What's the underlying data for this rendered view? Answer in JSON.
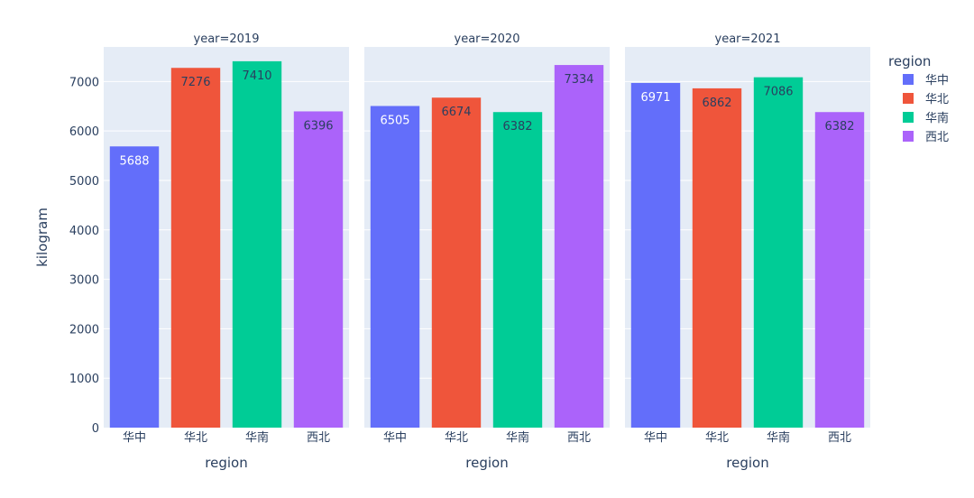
{
  "chart_data": {
    "type": "bar",
    "y_axis_label": "kilogram",
    "x_axis_label": "region",
    "ylim": [
      0,
      7700
    ],
    "y_ticks": [
      "0",
      "1000",
      "2000",
      "3000",
      "4000",
      "5000",
      "6000",
      "7000"
    ],
    "grid": true,
    "legend": {
      "title": "region",
      "placement": "right",
      "items": [
        {
          "name": "华中",
          "color": "#636efa"
        },
        {
          "name": "华北",
          "color": "#ef553b"
        },
        {
          "name": "华南",
          "color": "#00cc96"
        },
        {
          "name": "西北",
          "color": "#ab63fa"
        }
      ]
    },
    "categories": [
      "华中",
      "华北",
      "华南",
      "西北"
    ],
    "facets": [
      {
        "title": "year=2019",
        "values": [
          5688,
          7276,
          7410,
          6396
        ]
      },
      {
        "title": "year=2020",
        "values": [
          6505,
          6674,
          6382,
          7334
        ]
      },
      {
        "title": "year=2021",
        "values": [
          6971,
          6862,
          7086,
          6382
        ]
      }
    ],
    "colors": {
      "plot_background": "#e5ecf6",
      "gridline": "#ffffff",
      "text": "#2a3f5f"
    }
  }
}
